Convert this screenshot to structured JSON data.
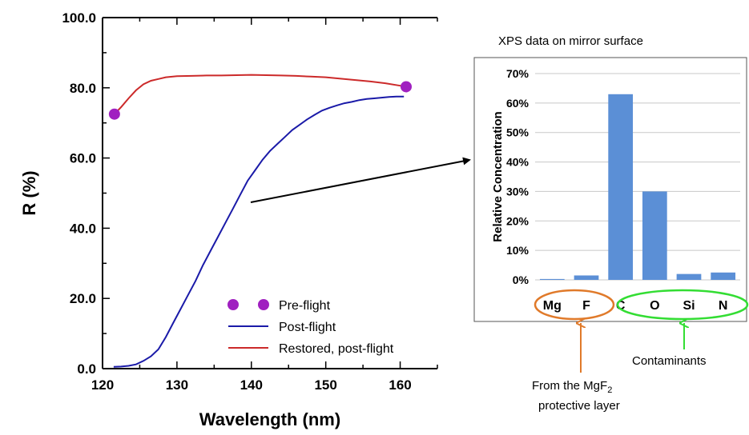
{
  "chart_data": [
    {
      "type": "line",
      "xlabel": "Wavelength (nm)",
      "ylabel": "R (%)",
      "xlim": [
        120,
        165
      ],
      "ylim": [
        0,
        100
      ],
      "x_ticks": [
        "120",
        "130",
        "140",
        "150",
        "160"
      ],
      "y_ticks": [
        "0.0",
        "20.0",
        "40.0",
        "60.0",
        "80.0",
        "100.0"
      ],
      "legend_position": "bottom-right",
      "series": [
        {
          "name": "Pre-flight",
          "marker": "circle",
          "color": "#a020c0",
          "points": [
            [
              121.6,
              72.5
            ],
            [
              160.8,
              80.3
            ]
          ]
        },
        {
          "name": "Post-flight",
          "color": "#1a1aa8",
          "points": [
            [
              121.5,
              0.5
            ],
            [
              122.5,
              0.6
            ],
            [
              123.5,
              0.8
            ],
            [
              124.5,
              1.2
            ],
            [
              125.5,
              2.2
            ],
            [
              126.5,
              3.5
            ],
            [
              127.5,
              5.5
            ],
            [
              128.5,
              9
            ],
            [
              129.5,
              13
            ],
            [
              130.5,
              17
            ],
            [
              131.5,
              21
            ],
            [
              132.5,
              25
            ],
            [
              133.5,
              29.5
            ],
            [
              134.5,
              33.5
            ],
            [
              135.5,
              37.5
            ],
            [
              136.5,
              41.5
            ],
            [
              137.5,
              45.5
            ],
            [
              138.5,
              49.5
            ],
            [
              139.5,
              53.5
            ],
            [
              140.5,
              56.5
            ],
            [
              141.5,
              59.5
            ],
            [
              142.5,
              62
            ],
            [
              143.5,
              64
            ],
            [
              144.5,
              66
            ],
            [
              145.5,
              68
            ],
            [
              146.5,
              69.5
            ],
            [
              147.5,
              71
            ],
            [
              148.5,
              72.3
            ],
            [
              149.5,
              73.5
            ],
            [
              150.5,
              74.3
            ],
            [
              151.5,
              75
            ],
            [
              152.5,
              75.6
            ],
            [
              153.5,
              76
            ],
            [
              154.5,
              76.5
            ],
            [
              155.5,
              76.8
            ],
            [
              156.5,
              77
            ],
            [
              157.5,
              77.2
            ],
            [
              158.5,
              77.4
            ],
            [
              159.5,
              77.5
            ],
            [
              160.5,
              77.5
            ]
          ]
        },
        {
          "name": "Restored, post-flight",
          "color": "#cc2a2a",
          "points": [
            [
              121.6,
              72.5
            ],
            [
              122.5,
              74.5
            ],
            [
              123.5,
              77
            ],
            [
              124.5,
              79.3
            ],
            [
              125.5,
              81
            ],
            [
              126.5,
              82
            ],
            [
              127.5,
              82.5
            ],
            [
              128.5,
              83
            ],
            [
              130,
              83.3
            ],
            [
              132,
              83.4
            ],
            [
              134,
              83.5
            ],
            [
              136,
              83.5
            ],
            [
              138,
              83.6
            ],
            [
              140,
              83.7
            ],
            [
              142,
              83.6
            ],
            [
              144,
              83.5
            ],
            [
              146,
              83.4
            ],
            [
              148,
              83.2
            ],
            [
              150,
              83
            ],
            [
              152,
              82.6
            ],
            [
              154,
              82.2
            ],
            [
              156,
              81.8
            ],
            [
              158,
              81.3
            ],
            [
              160,
              80.6
            ],
            [
              160.8,
              80.3
            ]
          ]
        }
      ]
    },
    {
      "type": "bar",
      "title": "XPS data on mirror surface",
      "ylabel": "Relative Concentration",
      "ylim": [
        0,
        70
      ],
      "y_ticks": [
        "0%",
        "10%",
        "20%",
        "30%",
        "40%",
        "50%",
        "60%",
        "70%"
      ],
      "categories": [
        "Mg",
        "F",
        "C",
        "O",
        "Si",
        "N"
      ],
      "values": [
        0.3,
        1.5,
        63,
        30,
        2,
        2.5
      ],
      "bar_color": "#5b8fd6"
    }
  ],
  "annotations": {
    "group1_color": "#e07a2a",
    "group2_color": "#33dd33",
    "mgf2_text_line1": "From the MgF",
    "mgf2_text_sub": "2",
    "mgf2_text_line2": "protective layer",
    "contaminants_text": "Contaminants"
  }
}
